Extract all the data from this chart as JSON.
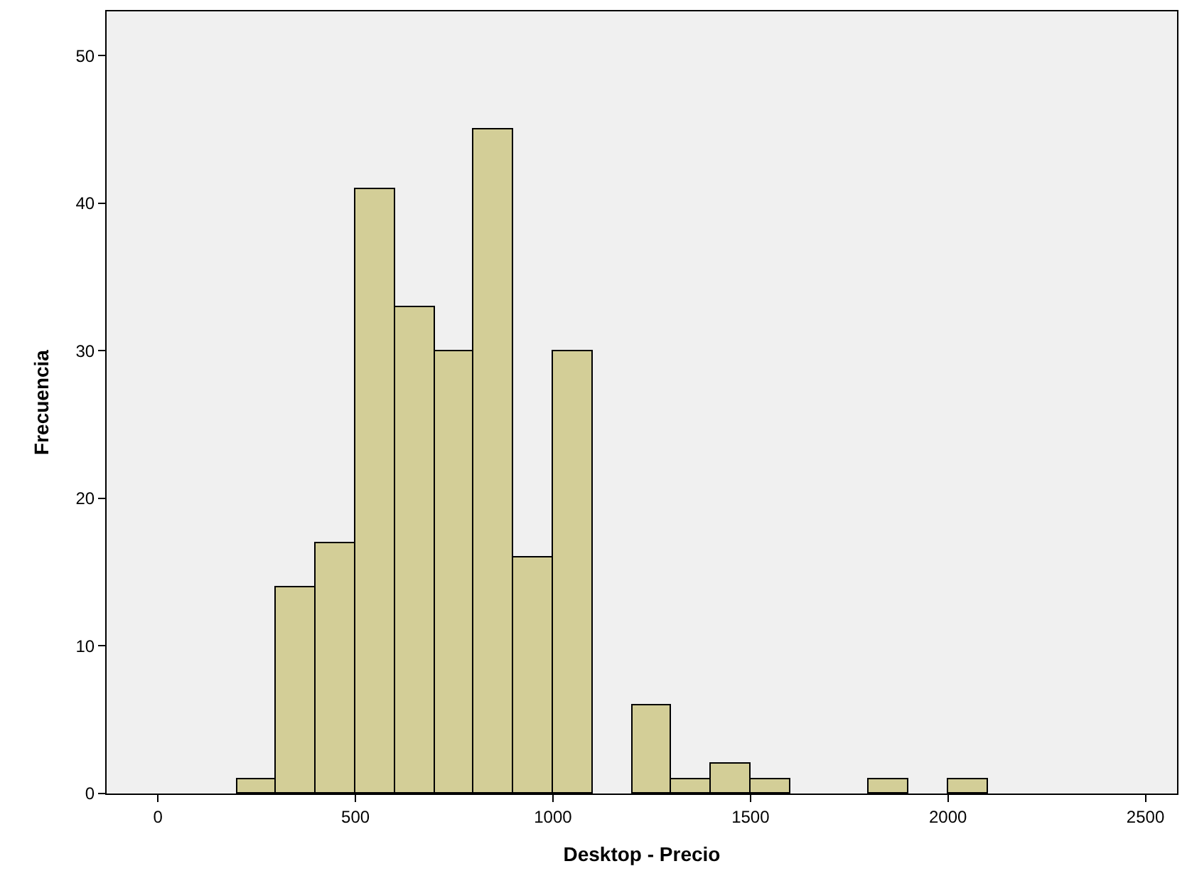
{
  "chart_data": {
    "type": "histogram",
    "xlabel": "Desktop - Precio",
    "ylabel": "Frecuencia",
    "bins": [
      200,
      300,
      400,
      500,
      600,
      700,
      800,
      900,
      1000,
      1100,
      1200,
      1300,
      1400,
      1500,
      1600,
      1700,
      1800,
      1900,
      2000,
      2100
    ],
    "values": [
      1,
      14,
      17,
      41,
      33,
      30,
      45,
      16,
      30,
      0,
      6,
      1,
      2,
      1,
      0,
      0,
      1,
      0,
      1
    ],
    "color": "#d3ce97",
    "xlim": [
      -130,
      2580
    ],
    "xticks": [
      0,
      500,
      1000,
      1500,
      2000,
      2500
    ],
    "ylim": [
      0,
      53
    ],
    "yticks": [
      0,
      10,
      20,
      30,
      40,
      50
    ],
    "grid": false
  }
}
